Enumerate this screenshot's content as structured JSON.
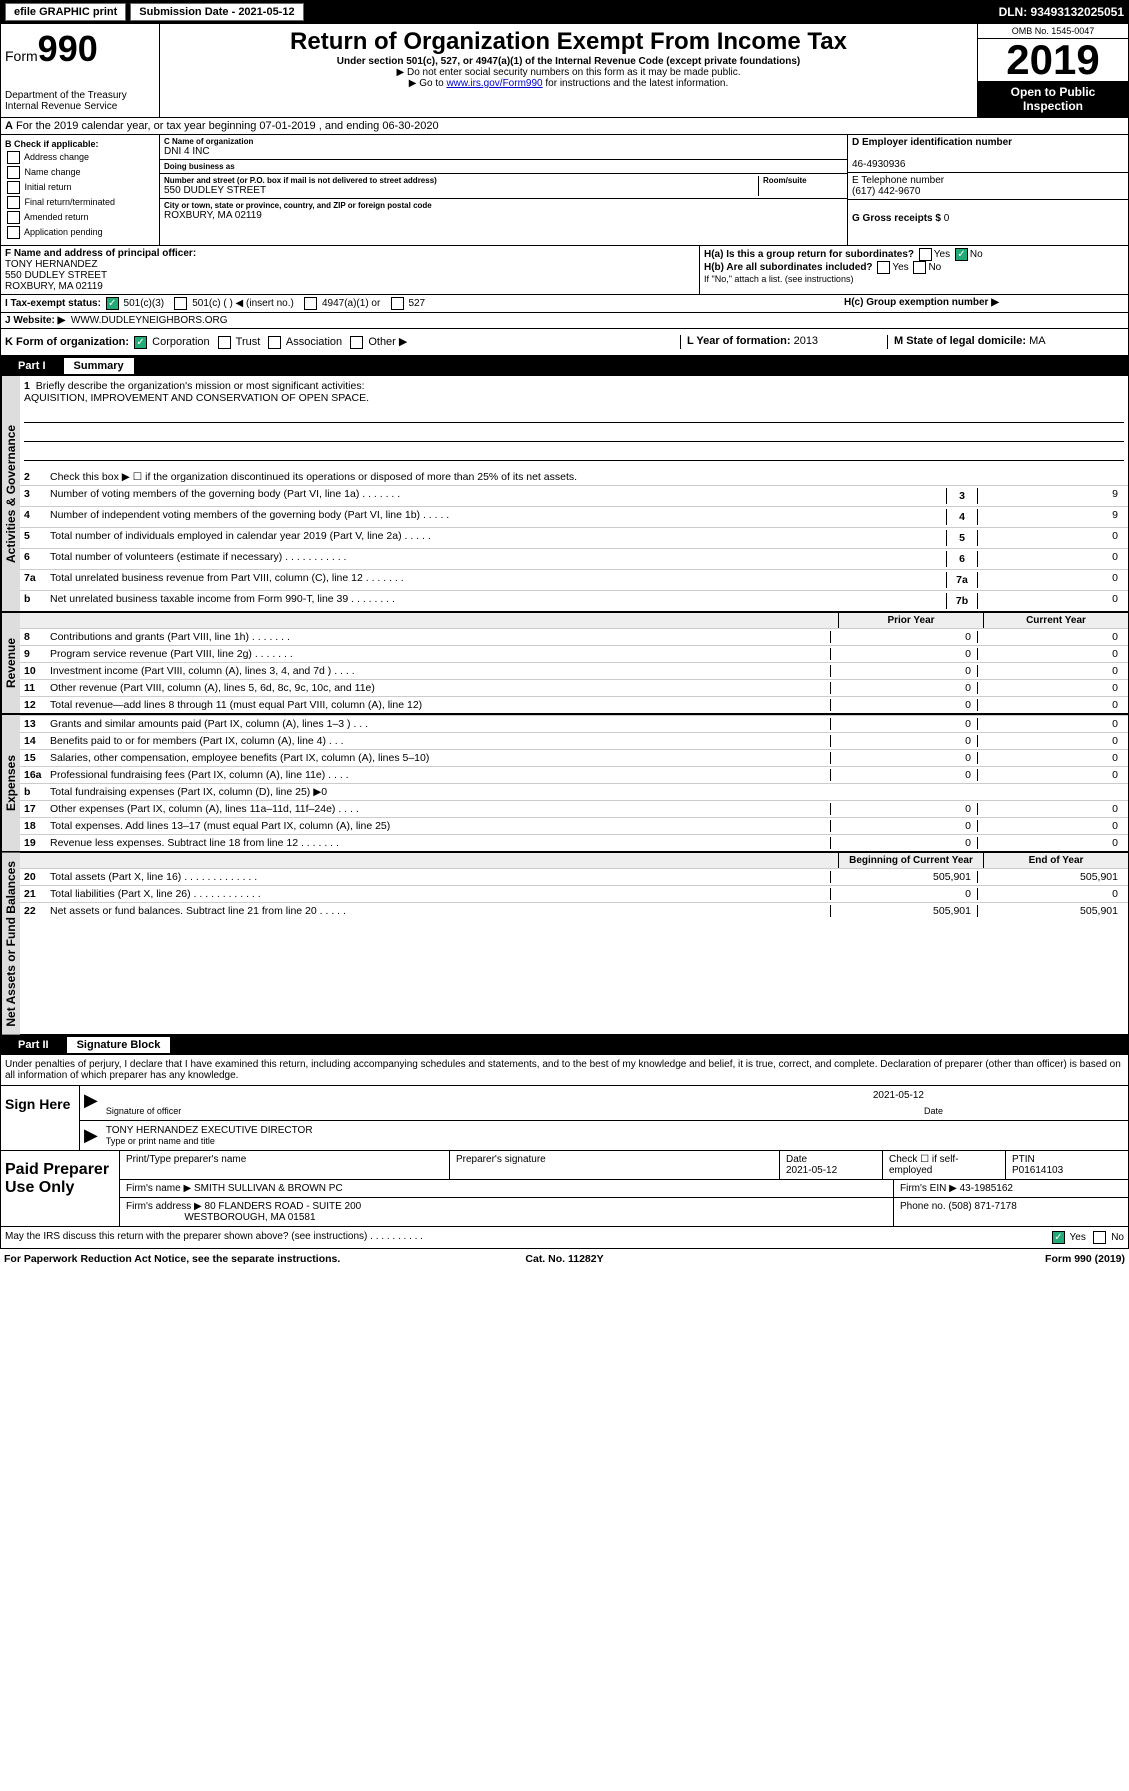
{
  "top": {
    "efile": "efile GRAPHIC print",
    "submission": "Submission Date - 2021-05-12",
    "dln": "DLN: 93493132025051"
  },
  "header": {
    "form_prefix": "Form",
    "form_no": "990",
    "dept1": "Department of the Treasury",
    "dept2": "Internal Revenue Service",
    "title": "Return of Organization Exempt From Income Tax",
    "sub": "Under section 501(c), 527, or 4947(a)(1) of the Internal Revenue Code (except private foundations)",
    "instr1": "▶ Do not enter social security numbers on this form as it may be made public.",
    "instr2_a": "▶ Go to ",
    "instr2_link": "www.irs.gov/Form990",
    "instr2_b": " for instructions and the latest information.",
    "omb": "OMB No. 1545-0047",
    "year": "2019",
    "open": "Open to Public Inspection"
  },
  "row_a": "For the 2019 calendar year, or tax year beginning 07-01-2019    , and ending 06-30-2020",
  "col_b": {
    "hdr": "B Check if applicable:",
    "items": [
      "Address change",
      "Name change",
      "Initial return",
      "Final return/terminated",
      "Amended return",
      "Application pending"
    ]
  },
  "org": {
    "c_lbl": "C Name of organization",
    "name": "DNI 4 INC",
    "dba_lbl": "Doing business as",
    "dba": "",
    "addr_lbl": "Number and street (or P.O. box if mail is not delivered to street address)",
    "room_lbl": "Room/suite",
    "addr": "550 DUDLEY STREET",
    "city_lbl": "City or town, state or province, country, and ZIP or foreign postal code",
    "city": "ROXBURY, MA  02119"
  },
  "right": {
    "d_lbl": "D Employer identification number",
    "d": "46-4930936",
    "e_lbl": "E Telephone number",
    "e": "(617) 442-9670",
    "g_lbl": "G Gross receipts $",
    "g": "0"
  },
  "f": {
    "lbl": "F Name and address of principal officer:",
    "name": "TONY HERNANDEZ",
    "addr1": "550 DUDLEY STREET",
    "addr2": "ROXBURY, MA  02119"
  },
  "h": {
    "ha": "H(a)  Is this a group return for subordinates?",
    "hb": "H(b)  Are all subordinates included?",
    "hb_note": "If \"No,\" attach a list. (see instructions)",
    "hc": "H(c)  Group exemption number ▶",
    "yes": "Yes",
    "no": "No"
  },
  "i": {
    "lbl": "I   Tax-exempt status:",
    "opts": [
      "501(c)(3)",
      "501(c) (   ) ◀ (insert no.)",
      "4947(a)(1) or",
      "527"
    ]
  },
  "j": {
    "lbl": "J   Website: ▶",
    "val": "WWW.DUDLEYNEIGHBORS.ORG"
  },
  "k": {
    "lbl": "K Form of organization:",
    "opts": [
      "Corporation",
      "Trust",
      "Association",
      "Other ▶"
    ],
    "l_lbl": "L Year of formation:",
    "l": "2013",
    "m_lbl": "M State of legal domicile:",
    "m": "MA"
  },
  "part1_hdr": {
    "part": "Part I",
    "title": "Summary"
  },
  "section_labels": {
    "ag": "Activities & Governance",
    "rev": "Revenue",
    "exp": "Expenses",
    "naf": "Net Assets or Fund Balances"
  },
  "l1": {
    "num": "1",
    "desc": "Briefly describe the organization's mission or most significant activities:",
    "val": "AQUISITION, IMPROVEMENT AND CONSERVATION OF OPEN SPACE."
  },
  "l2": {
    "num": "2",
    "desc": "Check this box ▶ ☐  if the organization discontinued its operations or disposed of more than 25% of its net assets."
  },
  "lines_ag": [
    {
      "num": "3",
      "desc": "Number of voting members of the governing body (Part VI, line 1a)   .    .    .    .    .    .    .",
      "box": "3",
      "val": "9"
    },
    {
      "num": "4",
      "desc": "Number of independent voting members of the governing body (Part VI, line 1b)   .    .    .    .    .",
      "box": "4",
      "val": "9"
    },
    {
      "num": "5",
      "desc": "Total number of individuals employed in calendar year 2019 (Part V, line 2a)   .    .    .    .    .",
      "box": "5",
      "val": "0"
    },
    {
      "num": "6",
      "desc": "Total number of volunteers (estimate if necessary)   .    .    .    .    .    .    .    .    .    .    .",
      "box": "6",
      "val": "0"
    },
    {
      "num": "7a",
      "desc": "Total unrelated business revenue from Part VIII, column (C), line 12   .    .    .    .    .    .    .",
      "box": "7a",
      "val": "0"
    },
    {
      "num": "b",
      "desc": "Net unrelated business taxable income from Form 990-T, line 39   .    .    .    .    .    .    .    .",
      "box": "7b",
      "val": "0"
    }
  ],
  "yrhdr": {
    "prior": "Prior Year",
    "curr": "Current Year"
  },
  "lines_rev": [
    {
      "num": "8",
      "desc": "Contributions and grants (Part VIII, line 1h)   .    .    .    .    .    .    .",
      "p": "0",
      "c": "0"
    },
    {
      "num": "9",
      "desc": "Program service revenue (Part VIII, line 2g)   .    .    .    .    .    .    .",
      "p": "0",
      "c": "0"
    },
    {
      "num": "10",
      "desc": "Investment income (Part VIII, column (A), lines 3, 4, and 7d )   .    .    .    .",
      "p": "0",
      "c": "0"
    },
    {
      "num": "11",
      "desc": "Other revenue (Part VIII, column (A), lines 5, 6d, 8c, 9c, 10c, and 11e)",
      "p": "0",
      "c": "0"
    },
    {
      "num": "12",
      "desc": "Total revenue—add lines 8 through 11 (must equal Part VIII, column (A), line 12)",
      "p": "0",
      "c": "0"
    }
  ],
  "lines_exp": [
    {
      "num": "13",
      "desc": "Grants and similar amounts paid (Part IX, column (A), lines 1–3 )   .    .    .",
      "p": "0",
      "c": "0"
    },
    {
      "num": "14",
      "desc": "Benefits paid to or for members (Part IX, column (A), line 4)   .    .    .",
      "p": "0",
      "c": "0"
    },
    {
      "num": "15",
      "desc": "Salaries, other compensation, employee benefits (Part IX, column (A), lines 5–10)",
      "p": "0",
      "c": "0"
    },
    {
      "num": "16a",
      "desc": "Professional fundraising fees (Part IX, column (A), line 11e)   .    .    .    .",
      "p": "0",
      "c": "0"
    },
    {
      "num": "b",
      "desc": "Total fundraising expenses (Part IX, column (D), line 25) ▶0",
      "p": "",
      "c": "",
      "shaded": true
    },
    {
      "num": "17",
      "desc": "Other expenses (Part IX, column (A), lines 11a–11d, 11f–24e)   .    .    .    .",
      "p": "0",
      "c": "0"
    },
    {
      "num": "18",
      "desc": "Total expenses. Add lines 13–17 (must equal Part IX, column (A), line 25)",
      "p": "0",
      "c": "0"
    },
    {
      "num": "19",
      "desc": "Revenue less expenses. Subtract line 18 from line 12   .    .    .    .    .    .    .",
      "p": "0",
      "c": "0"
    }
  ],
  "yrhdr2": {
    "prior": "Beginning of Current Year",
    "curr": "End of Year"
  },
  "lines_naf": [
    {
      "num": "20",
      "desc": "Total assets (Part X, line 16)   .    .    .    .    .    .    .    .    .    .    .    .    .",
      "p": "505,901",
      "c": "505,901"
    },
    {
      "num": "21",
      "desc": "Total liabilities (Part X, line 26)   .    .    .    .    .    .    .    .    .    .    .    .",
      "p": "0",
      "c": "0"
    },
    {
      "num": "22",
      "desc": "Net assets or fund balances. Subtract line 21 from line 20   .    .    .    .    .",
      "p": "505,901",
      "c": "505,901"
    }
  ],
  "part2_hdr": {
    "part": "Part II",
    "title": "Signature Block"
  },
  "perjury": "Under penalties of perjury, I declare that I have examined this return, including accompanying schedules and statements, and to the best of my knowledge and belief, it is true, correct, and complete. Declaration of preparer (other than officer) is based on all information of which preparer has any knowledge.",
  "sign": {
    "lbl": "Sign Here",
    "sig_date": "2021-05-12",
    "sig_lbl": "Signature of officer",
    "date_lbl": "Date",
    "name": "TONY HERNANDEZ  EXECUTIVE DIRECTOR",
    "name_lbl": "Type or print name and title"
  },
  "paid": {
    "lbl": "Paid Preparer Use Only",
    "h1": "Print/Type preparer's name",
    "h2": "Preparer's signature",
    "h3": "Date",
    "h4": "Check ☐ if self-employed",
    "h5": "PTIN",
    "date": "2021-05-12",
    "ptin": "P01614103",
    "firm_lbl": "Firm's name    ▶",
    "firm": "SMITH SULLIVAN & BROWN PC",
    "ein_lbl": "Firm's EIN ▶",
    "ein": "43-1985162",
    "addr_lbl": "Firm's address ▶",
    "addr": "80 FLANDERS ROAD - SUITE 200",
    "addr2": "WESTBOROUGH, MA  01581",
    "phone_lbl": "Phone no.",
    "phone": "(508) 871-7178"
  },
  "discuss": {
    "q": "May the IRS discuss this return with the preparer shown above? (see instructions)   .    .    .    .    .    .    .    .    .    .",
    "yes": "Yes",
    "no": "No"
  },
  "bottom": {
    "l": "For Paperwork Reduction Act Notice, see the separate instructions.",
    "m": "Cat. No. 11282Y",
    "r": "Form 990 (2019)"
  }
}
